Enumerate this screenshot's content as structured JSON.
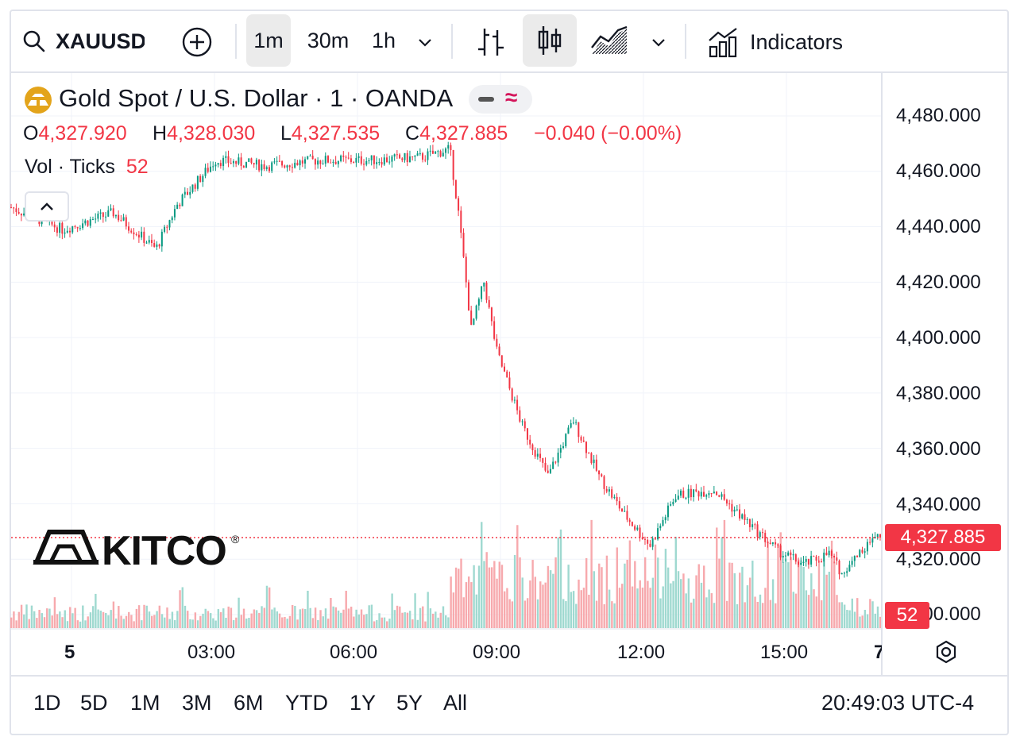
{
  "toolbar": {
    "symbol": "XAUUSD",
    "intervals": [
      "1m",
      "30m",
      "1h"
    ],
    "active_interval": "1m",
    "indicators_label": "Indicators"
  },
  "legend": {
    "title": "Gold Spot / U.S. Dollar · 1 · OANDA",
    "o_label": "O",
    "o_value": "4,327.920",
    "h_label": "H",
    "h_value": "4,328.030",
    "l_label": "L",
    "l_value": "4,327.535",
    "c_label": "C",
    "c_value": "4,327.885",
    "change": "−0.040 (−0.00%)",
    "vol_label": "Vol · Ticks",
    "vol_value": "52"
  },
  "price_axis": {
    "labels": [
      "4,480.000",
      "4,460.000",
      "4,440.000",
      "4,420.000",
      "4,400.000",
      "4,380.000",
      "4,360.000",
      "4,340.000",
      "4,320.000",
      "4,300.000"
    ],
    "current_price": "4,327.885",
    "current_volume": "52"
  },
  "time_axis": {
    "labels": [
      "5",
      "03:00",
      "06:00",
      "09:00",
      "12:00",
      "15:00",
      "7"
    ]
  },
  "watermark": "KITCO",
  "ranges": [
    "1D",
    "5D",
    "1M",
    "3M",
    "6M",
    "YTD",
    "1Y",
    "5Y",
    "All"
  ],
  "clock": "20:49:03 UTC-4",
  "colors": {
    "up": "#089981",
    "down": "#f23645",
    "up_volume": "#9fd9d0",
    "down_volume": "#f7a9ad",
    "accent": "#f23645"
  },
  "chart_data": {
    "type": "candlestick",
    "title": "Gold Spot / U.S. Dollar · 1 · OANDA",
    "ylim": [
      4300,
      4485
    ],
    "x": [
      "00:00",
      "01:00",
      "02:00",
      "02:50",
      "03:15",
      "04:00",
      "05:00",
      "06:00",
      "07:00",
      "08:00",
      "08:35",
      "08:45",
      "09:00",
      "09:15",
      "09:30",
      "10:00",
      "10:30",
      "11:00",
      "11:30",
      "12:00",
      "12:30",
      "13:00",
      "13:45",
      "14:15",
      "15:00",
      "15:30",
      "16:00",
      "16:15",
      "16:40",
      "17:00"
    ],
    "y": [
      4447,
      4439,
      4445,
      4432,
      4448,
      4464,
      4462,
      4464,
      4464,
      4465,
      4468,
      4445,
      4403,
      4420,
      4395,
      4368,
      4350,
      4370,
      4350,
      4336,
      4325,
      4343,
      4345,
      4336,
      4323,
      4318,
      4322,
      4315,
      4324,
      4328
    ],
    "grid": true,
    "legend": "top-left"
  }
}
